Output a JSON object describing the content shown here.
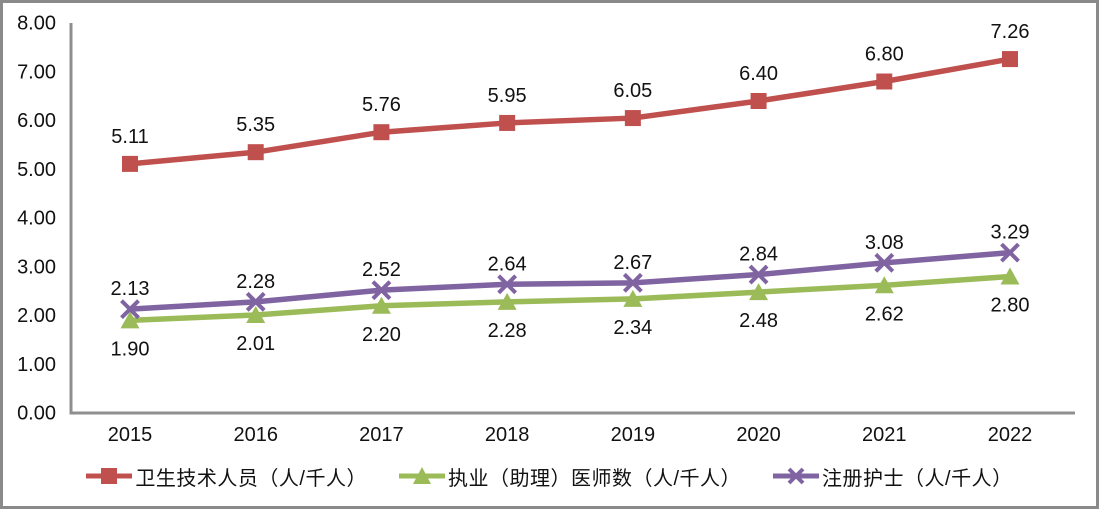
{
  "chart_data": {
    "type": "line",
    "title": "",
    "xlabel": "",
    "ylabel": "",
    "x_categories": [
      "2015",
      "2016",
      "2017",
      "2018",
      "2019",
      "2020",
      "2021",
      "2022"
    ],
    "y_ticks": [
      "0.00",
      "1.00",
      "2.00",
      "3.00",
      "4.00",
      "5.00",
      "6.00",
      "7.00",
      "8.00"
    ],
    "ylim": [
      0,
      8
    ],
    "grid": false,
    "legend_position": "bottom",
    "axis_color": "#8f8f8f",
    "text_color": "#111111",
    "data_label_decimals": 2,
    "series": [
      {
        "name": "卫生技术人员（人/千人）",
        "values": [
          5.11,
          5.35,
          5.76,
          5.95,
          6.05,
          6.4,
          6.8,
          7.26
        ],
        "color": "#c0504d",
        "marker": "square",
        "label_position": "above"
      },
      {
        "name": "执业（助理）医师数（人/千人）",
        "values": [
          1.9,
          2.01,
          2.2,
          2.28,
          2.34,
          2.48,
          2.62,
          2.8
        ],
        "color": "#9bbb59",
        "marker": "triangle",
        "label_position": "below"
      },
      {
        "name": "注册护士（人/千人）",
        "values": [
          2.13,
          2.28,
          2.52,
          2.64,
          2.67,
          2.84,
          3.08,
          3.29
        ],
        "color": "#8064a2",
        "marker": "x",
        "label_position": "above"
      }
    ]
  },
  "frame": {
    "border_color": "#8a8a8a",
    "background": "#ffffff"
  }
}
